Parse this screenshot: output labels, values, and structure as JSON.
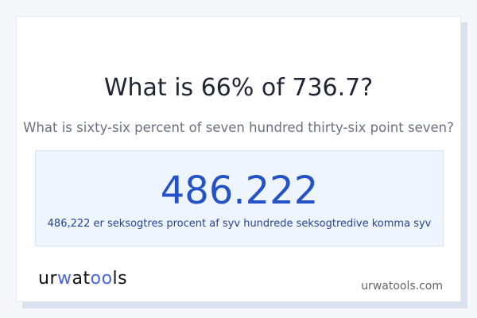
{
  "question": {
    "title": "What is 66% of 736.7?",
    "subtitle": "What is sixty-six percent of seven hundred thirty-six point seven?"
  },
  "result": {
    "value": "486.222",
    "words": "486,222 er seksogtres procent af syv hundrede seksogtredive komma syv"
  },
  "footer": {
    "logo": {
      "part1": "ur",
      "part2": "w",
      "part3": "at",
      "part4": "oo",
      "part5": "ls"
    },
    "domain": "urwatools.com"
  },
  "colors": {
    "accent": "#2353c7",
    "logo_accent": "#4a63e8",
    "result_bg": "#eef5ff"
  }
}
